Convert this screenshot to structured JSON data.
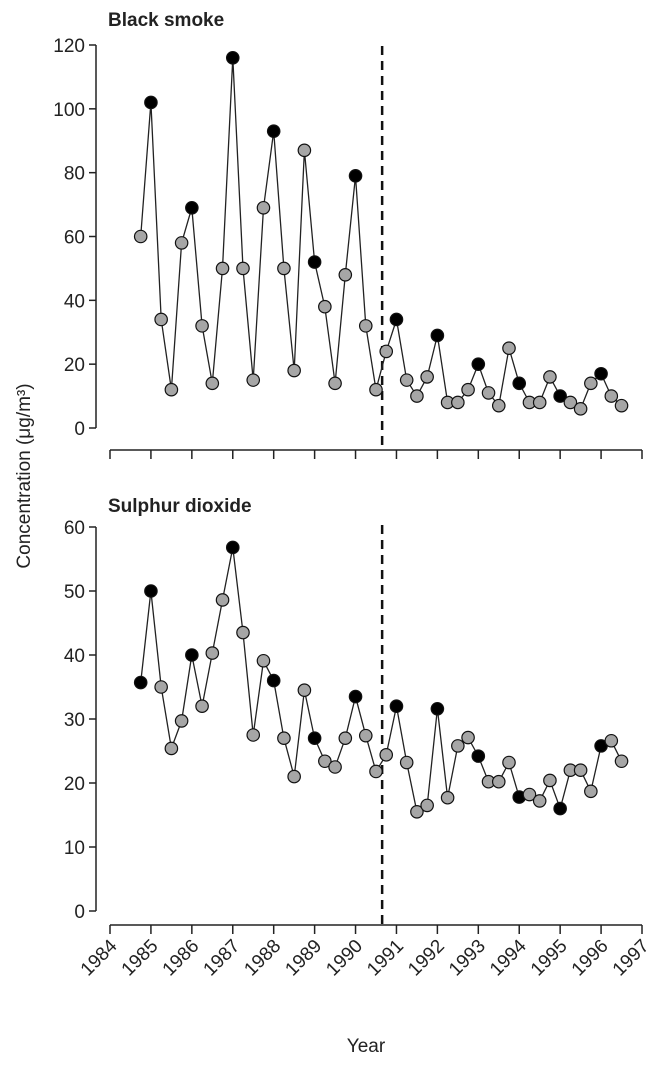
{
  "chart_data": [
    {
      "type": "scatter",
      "title": "Black smoke",
      "ylim": [
        0,
        120
      ],
      "yticks": [
        0,
        20,
        40,
        60,
        80,
        100,
        120
      ],
      "xlim": [
        1984,
        1997
      ],
      "reference_line_x": 1990.65,
      "point_colors": {
        "grey": "#a6a6a6",
        "black": "#000000"
      },
      "series": [
        {
          "x": [
            1984.75,
            1985.0,
            1985.25,
            1985.5,
            1985.75,
            1986.0,
            1986.25,
            1986.5,
            1986.75,
            1987.0,
            1987.25,
            1987.5,
            1987.75,
            1988.0,
            1988.25,
            1988.5,
            1988.75,
            1989.0,
            1989.25,
            1989.5,
            1989.75,
            1990.0,
            1990.25,
            1990.5,
            1990.75,
            1991.0,
            1991.25,
            1991.5,
            1991.75,
            1992.0,
            1992.25,
            1992.5,
            1992.75,
            1993.0,
            1993.25,
            1993.5,
            1993.75,
            1994.0,
            1994.25,
            1994.5,
            1994.75,
            1995.0,
            1995.25,
            1995.5,
            1995.75,
            1996.0,
            1996.25,
            1996.5
          ],
          "y": [
            60,
            102,
            34,
            12,
            58,
            69,
            32,
            14,
            50,
            116,
            50,
            15,
            69,
            93,
            50,
            18,
            87,
            52,
            38,
            14,
            48,
            79,
            32,
            12,
            24,
            34,
            15,
            10,
            16,
            29,
            8,
            8,
            12,
            20,
            11,
            7,
            25,
            14,
            8,
            8,
            16,
            10,
            8,
            6,
            14,
            17,
            10,
            7
          ],
          "fill": [
            "grey",
            "black",
            "grey",
            "grey",
            "grey",
            "black",
            "grey",
            "grey",
            "grey",
            "black",
            "grey",
            "grey",
            "grey",
            "black",
            "grey",
            "grey",
            "grey",
            "black",
            "grey",
            "grey",
            "grey",
            "black",
            "grey",
            "grey",
            "grey",
            "black",
            "grey",
            "grey",
            "grey",
            "black",
            "grey",
            "grey",
            "grey",
            "black",
            "grey",
            "grey",
            "grey",
            "black",
            "grey",
            "grey",
            "grey",
            "black",
            "grey",
            "grey",
            "grey",
            "black",
            "grey",
            "grey"
          ]
        }
      ]
    },
    {
      "type": "scatter",
      "title": "Sulphur dioxide",
      "ylim": [
        0,
        60
      ],
      "yticks": [
        0,
        10,
        20,
        30,
        40,
        50,
        60
      ],
      "xlim": [
        1984,
        1997
      ],
      "xticks": [
        1984,
        1985,
        1986,
        1987,
        1988,
        1989,
        1990,
        1991,
        1992,
        1993,
        1994,
        1995,
        1996,
        1997
      ],
      "xlabel": "Year",
      "reference_line_x": 1990.65,
      "point_colors": {
        "grey": "#a6a6a6",
        "black": "#000000"
      },
      "series": [
        {
          "x": [
            1984.75,
            1985.0,
            1985.25,
            1985.5,
            1985.75,
            1986.0,
            1986.25,
            1986.5,
            1986.75,
            1987.0,
            1987.25,
            1987.5,
            1987.75,
            1988.0,
            1988.25,
            1988.5,
            1988.75,
            1989.0,
            1989.25,
            1989.5,
            1989.75,
            1990.0,
            1990.25,
            1990.5,
            1990.75,
            1991.0,
            1991.25,
            1991.5,
            1991.75,
            1992.0,
            1992.25,
            1992.5,
            1992.75,
            1993.0,
            1993.25,
            1993.5,
            1993.75,
            1994.0,
            1994.25,
            1994.5,
            1994.75,
            1995.0,
            1995.25,
            1995.5,
            1995.75,
            1996.0,
            1996.25,
            1996.5
          ],
          "y": [
            35.7,
            50,
            35,
            25.4,
            29.7,
            40,
            32,
            40.3,
            48.6,
            56.8,
            43.5,
            27.5,
            39.1,
            36,
            27,
            21,
            34.5,
            27,
            23.4,
            22.5,
            27,
            33.5,
            27.4,
            21.8,
            24.4,
            32,
            23.2,
            15.5,
            16.5,
            31.6,
            17.7,
            25.8,
            27.1,
            24.2,
            20.2,
            20.2,
            23.2,
            17.8,
            18.2,
            17.2,
            20.4,
            16,
            22,
            22,
            18.7,
            25.8,
            26.6,
            23.4
          ],
          "fill": [
            "black",
            "black",
            "grey",
            "grey",
            "grey",
            "black",
            "grey",
            "grey",
            "grey",
            "black",
            "grey",
            "grey",
            "grey",
            "black",
            "grey",
            "grey",
            "grey",
            "black",
            "grey",
            "grey",
            "grey",
            "black",
            "grey",
            "grey",
            "grey",
            "black",
            "grey",
            "grey",
            "grey",
            "black",
            "grey",
            "grey",
            "grey",
            "black",
            "grey",
            "grey",
            "grey",
            "black",
            "grey",
            "grey",
            "grey",
            "black",
            "grey",
            "grey",
            "grey",
            "black",
            "grey",
            "grey"
          ]
        }
      ]
    }
  ],
  "shared_ylabel": "Concentration (μg/m³)"
}
